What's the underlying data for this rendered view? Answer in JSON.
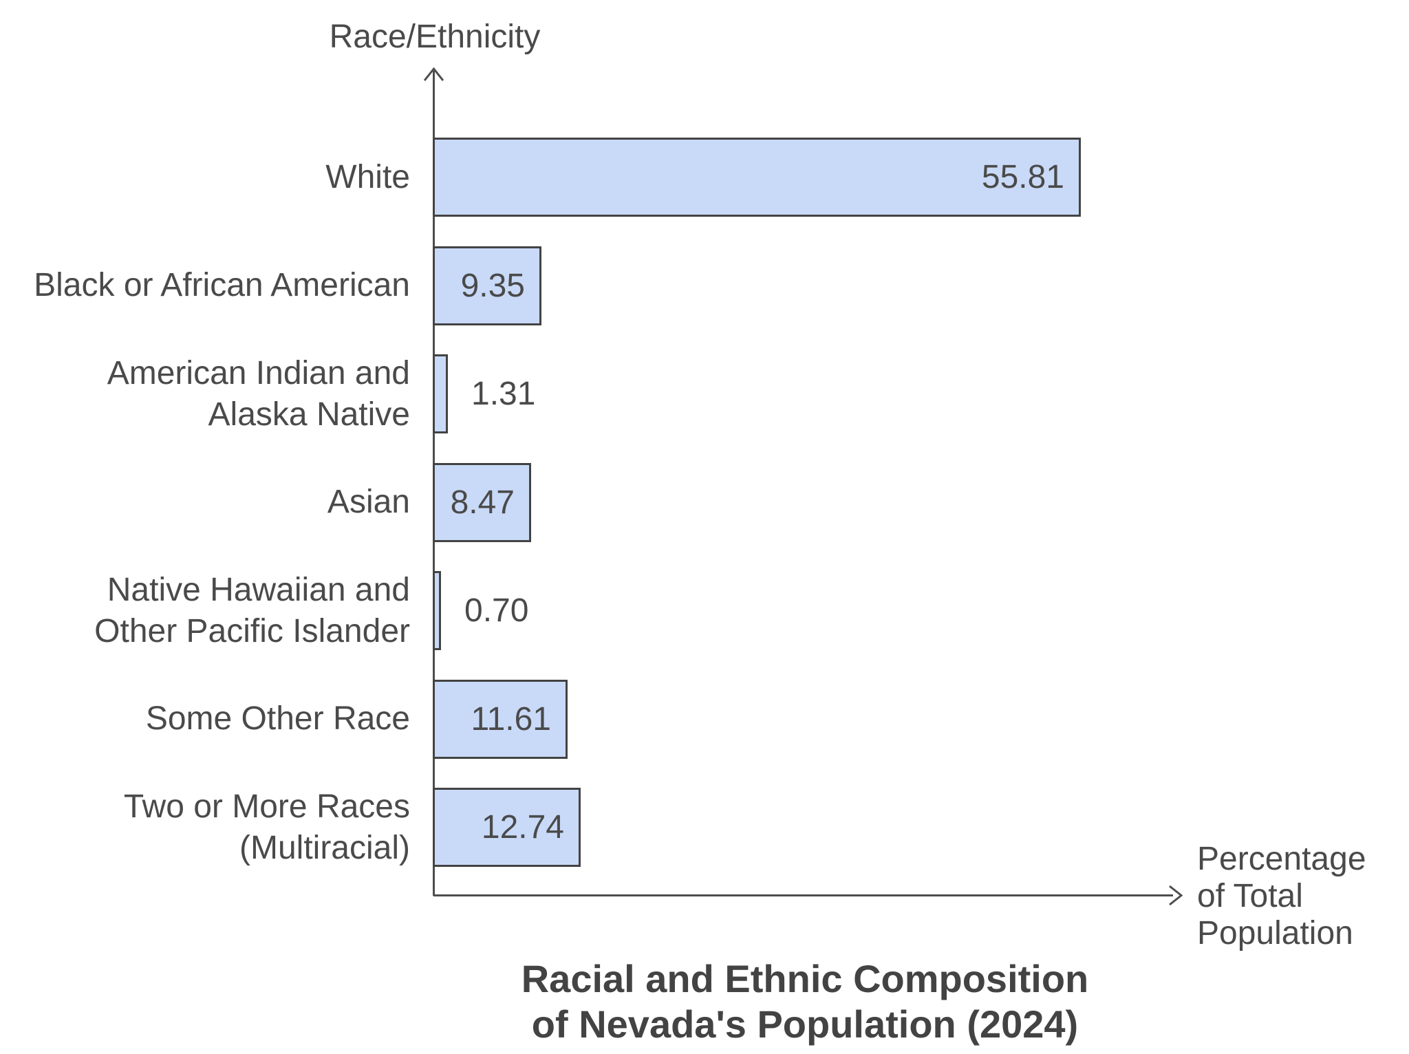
{
  "chart_data": {
    "type": "bar",
    "orientation": "horizontal",
    "title": "Racial and Ethnic Composition\nof Nevada's Population (2024)",
    "ylabel": "Race/Ethnicity",
    "xlabel": "Percentage\nof Total\nPopulation",
    "categories": [
      "White",
      "Black or African American",
      "American Indian and\nAlaska Native",
      "Asian",
      "Native Hawaiian and\nOther Pacific Islander",
      "Some Other Race",
      "Two or More Races\n(Multiracial)"
    ],
    "values": [
      55.81,
      9.35,
      1.31,
      8.47,
      0.7,
      11.61,
      12.74
    ],
    "value_labels": [
      "55.81",
      "9.35",
      "1.31",
      "8.47",
      "0.70",
      "11.61",
      "12.74"
    ],
    "xlim": [
      0,
      64
    ],
    "grid": false,
    "legend": false,
    "colors": {
      "bar_fill": "#c9daf8",
      "bar_border": "#434343",
      "axis": "#4d4d4d",
      "text": "#4a4a4a",
      "title_text": "#434343",
      "background": "#ffffff"
    }
  }
}
